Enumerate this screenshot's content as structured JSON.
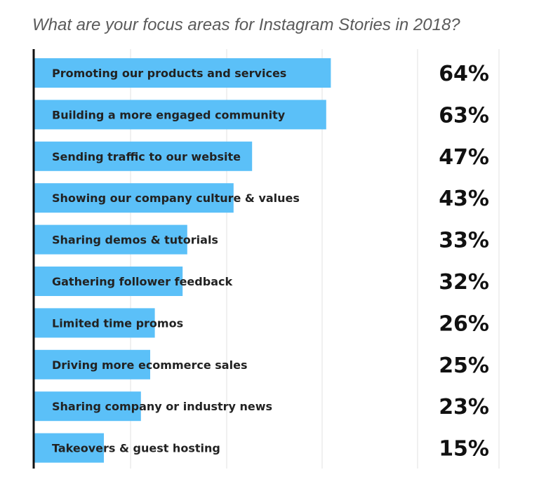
{
  "chart_data": {
    "type": "bar",
    "orientation": "horizontal",
    "title": "What are your focus areas for Instagram Stories in 2018?",
    "categories": [
      "Promoting our products and services",
      "Building a more engaged community",
      "Sending traffic to our website",
      "Showing our company culture & values",
      "Sharing demos & tutorials",
      "Gathering follower feedback",
      "Limited time promos",
      "Driving more ecommerce sales",
      "Sharing company or industry news",
      "Takeovers & guest hosting"
    ],
    "values": [
      64,
      63,
      47,
      43,
      33,
      32,
      26,
      25,
      23,
      15
    ],
    "value_labels": [
      "64%",
      "63%",
      "47%",
      "43%",
      "33%",
      "32%",
      "26%",
      "25%",
      "23%",
      "15%"
    ],
    "unit": "%",
    "xlim": [
      0,
      100
    ],
    "grid": true,
    "colors": {
      "bar": "#5bc0f8",
      "axis": "#111111",
      "grid": "#e2e2e2",
      "title": "#5a5a5a"
    }
  }
}
